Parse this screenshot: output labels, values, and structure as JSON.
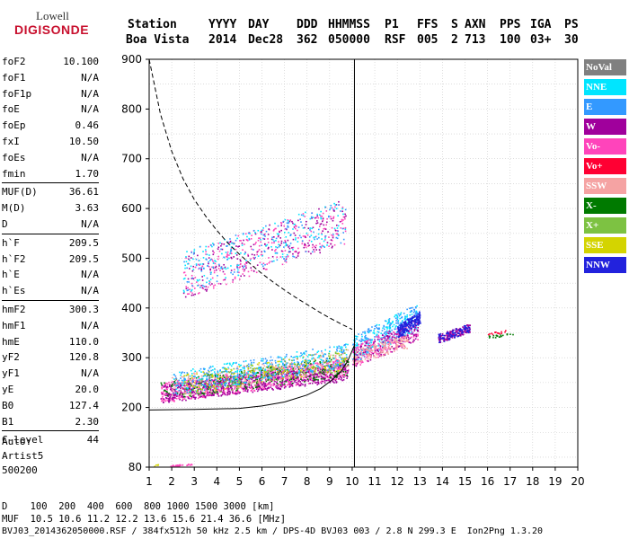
{
  "logo": {
    "line1": "Lowell",
    "line2": "DIGISONDE"
  },
  "header": {
    "row1": [
      "Station",
      "YYYY",
      "DAY",
      "DDD",
      "HHMMSS",
      "P1",
      "FFS",
      "S",
      "AXN",
      "PPS",
      "IGA",
      "PS"
    ],
    "row2": [
      "Boa Vista",
      "2014",
      "Dec28",
      "362",
      "050000",
      "RSF",
      "005",
      "2",
      "713",
      "100",
      "03+",
      "30"
    ]
  },
  "params": {
    "group1": [
      {
        "label": "foF2",
        "value": "10.100"
      },
      {
        "label": "foF1",
        "value": "N/A"
      },
      {
        "label": "foF1p",
        "value": "N/A"
      },
      {
        "label": "foE",
        "value": "N/A"
      },
      {
        "label": "foEp",
        "value": "0.46"
      },
      {
        "label": "fxI",
        "value": "10.50"
      },
      {
        "label": "foEs",
        "value": "N/A"
      },
      {
        "label": "fmin",
        "value": "1.70"
      }
    ],
    "group2": [
      {
        "label": "MUF(D)",
        "value": "36.61"
      },
      {
        "label": "M(D)",
        "value": "3.63"
      },
      {
        "label": "D",
        "value": "N/A"
      }
    ],
    "group3": [
      {
        "label": "h`F",
        "value": "209.5"
      },
      {
        "label": "h`F2",
        "value": "209.5"
      },
      {
        "label": "h`E",
        "value": "N/A"
      },
      {
        "label": "h`Es",
        "value": "N/A"
      }
    ],
    "group4": [
      {
        "label": "hmF2",
        "value": "300.3"
      },
      {
        "label": "hmF1",
        "value": "N/A"
      },
      {
        "label": "hmE",
        "value": "110.0"
      },
      {
        "label": "yF2",
        "value": "120.8"
      },
      {
        "label": "yF1",
        "value": "N/A"
      },
      {
        "label": "yE",
        "value": "20.0"
      },
      {
        "label": "B0",
        "value": "127.4"
      },
      {
        "label": "B1",
        "value": "2.30"
      }
    ],
    "group5": [
      {
        "label": "C-level",
        "value": "44"
      }
    ]
  },
  "auto": {
    "line1": "Auto:",
    "line2": "Artist5",
    "line3": "500200"
  },
  "legend": [
    {
      "label": "NoVal",
      "color": "#808080"
    },
    {
      "label": "NNE",
      "color": "#00e5ff"
    },
    {
      "label": "E",
      "color": "#3399ff"
    },
    {
      "label": "W",
      "color": "#a0009c"
    },
    {
      "label": "Vo-",
      "color": "#ff44bb"
    },
    {
      "label": "Vo+",
      "color": "#ff0033"
    },
    {
      "label": "SSW",
      "color": "#f5a3a3"
    },
    {
      "label": "X-",
      "color": "#007a00"
    },
    {
      "label": "X+",
      "color": "#7dc242"
    },
    {
      "label": "SSE",
      "color": "#d4d400"
    },
    {
      "label": "NNW",
      "color": "#2222dd"
    }
  ],
  "footer": {
    "line1": "D    100  200  400  600  800 1000 1500 3000 [km]",
    "line2": "MUF  10.5 10.6 11.2 12.2 13.6 15.6 21.4 36.6 [MHz]",
    "line3": "BVJ03_2014362050000.RSF / 384fx512h 50 kHz 2.5 km / DPS-4D BVJ03 003 / 2.8 N 299.3 E  Ion2Png 1.3.20"
  },
  "chart_data": {
    "type": "scatter",
    "xlim": [
      1,
      20
    ],
    "ylim": [
      80,
      900
    ],
    "x_ticks": [
      "1",
      "2",
      "3",
      "4",
      "5",
      "6",
      "7",
      "8",
      "9",
      "10",
      "11",
      "12",
      "13",
      "14",
      "15",
      "16",
      "17",
      "18",
      "19",
      "20"
    ],
    "y_ticks": [
      "80",
      "200",
      "300",
      "400",
      "500",
      "600",
      "700",
      "800",
      "900"
    ],
    "grid": true,
    "profile_curve": {
      "x": [
        1.0,
        3.0,
        5.0,
        6.0,
        7.0,
        8.0,
        8.6,
        9.1,
        9.5,
        9.8,
        10.1
      ],
      "y": [
        195,
        196,
        198,
        203,
        211,
        225,
        238,
        255,
        272,
        293,
        325
      ]
    },
    "muf_curve": {
      "x": [
        1.0,
        1.5,
        2.0,
        2.5,
        3.0,
        3.5,
        4.0,
        4.5,
        5.0,
        5.5,
        6.0,
        6.5,
        7.0,
        7.5,
        8.0,
        8.5,
        9.0,
        9.5,
        10.0
      ],
      "y": [
        900,
        790,
        715,
        660,
        618,
        585,
        556,
        530,
        508,
        488,
        469,
        452,
        436,
        421,
        407,
        393,
        380,
        368,
        357
      ]
    },
    "fof2_line_x": 10.1,
    "echo_clusters": [
      {
        "x": [
          1.5,
          9.8
        ],
        "y": [
          210,
          300
        ],
        "color": "#ff44bb",
        "n": 900
      },
      {
        "x": [
          1.5,
          9.8
        ],
        "y": [
          210,
          290
        ],
        "color": "#a0009c",
        "n": 700
      },
      {
        "x": [
          1.5,
          9.8
        ],
        "y": [
          215,
          305
        ],
        "color": "#007a00",
        "n": 300
      },
      {
        "x": [
          2.0,
          9.8
        ],
        "y": [
          220,
          320
        ],
        "color": "#f5a3a3",
        "n": 300
      },
      {
        "x": [
          2.0,
          9.8
        ],
        "y": [
          225,
          330
        ],
        "color": "#00e5ff",
        "n": 250
      },
      {
        "x": [
          2.0,
          9.8
        ],
        "y": [
          225,
          330
        ],
        "color": "#3399ff",
        "n": 250
      },
      {
        "x": [
          2.5,
          9.8
        ],
        "y": [
          220,
          320
        ],
        "color": "#7dc242",
        "n": 150
      },
      {
        "x": [
          2.5,
          9.8
        ],
        "y": [
          225,
          320
        ],
        "color": "#d4d400",
        "n": 120
      },
      {
        "x": [
          2.5,
          9.7
        ],
        "y": [
          420,
          620
        ],
        "color": "#ff44bb",
        "n": 260
      },
      {
        "x": [
          2.5,
          9.7
        ],
        "y": [
          420,
          620
        ],
        "color": "#a0009c",
        "n": 200
      },
      {
        "x": [
          2.5,
          9.7
        ],
        "y": [
          430,
          620
        ],
        "color": "#00e5ff",
        "n": 160
      },
      {
        "x": [
          2.5,
          9.7
        ],
        "y": [
          430,
          620
        ],
        "color": "#3399ff",
        "n": 140
      },
      {
        "x": [
          10.0,
          12.9
        ],
        "y": [
          290,
          410
        ],
        "color": "#3399ff",
        "n": 260
      },
      {
        "x": [
          10.0,
          12.9
        ],
        "y": [
          290,
          410
        ],
        "color": "#00e5ff",
        "n": 150
      },
      {
        "x": [
          10.0,
          12.9
        ],
        "y": [
          280,
          380
        ],
        "color": "#ff44bb",
        "n": 200
      },
      {
        "x": [
          10.0,
          12.9
        ],
        "y": [
          280,
          380
        ],
        "color": "#a0009c",
        "n": 150
      },
      {
        "x": [
          10.0,
          12.5
        ],
        "y": [
          285,
          350
        ],
        "color": "#f5a3a3",
        "n": 150
      },
      {
        "x": [
          12.0,
          13.0
        ],
        "y": [
          340,
          395
        ],
        "color": "#2222dd",
        "n": 180
      },
      {
        "x": [
          13.8,
          15.2
        ],
        "y": [
          330,
          370
        ],
        "color": "#a0009c",
        "n": 160
      },
      {
        "x": [
          13.8,
          15.2
        ],
        "y": [
          330,
          370
        ],
        "color": "#2222dd",
        "n": 80
      },
      {
        "x": [
          16.0,
          17.3
        ],
        "y": [
          340,
          352
        ],
        "color": "#007a00",
        "n": 20
      },
      {
        "x": [
          16.0,
          16.8
        ],
        "y": [
          346,
          356
        ],
        "color": "#ff0033",
        "n": 15
      },
      {
        "x": [
          1.9,
          2.9
        ],
        "y": [
          82,
          88
        ],
        "color": "#ff44bb",
        "n": 30
      },
      {
        "x": [
          1.2,
          1.5
        ],
        "y": [
          82,
          88
        ],
        "color": "#d4d400",
        "n": 6
      }
    ]
  }
}
